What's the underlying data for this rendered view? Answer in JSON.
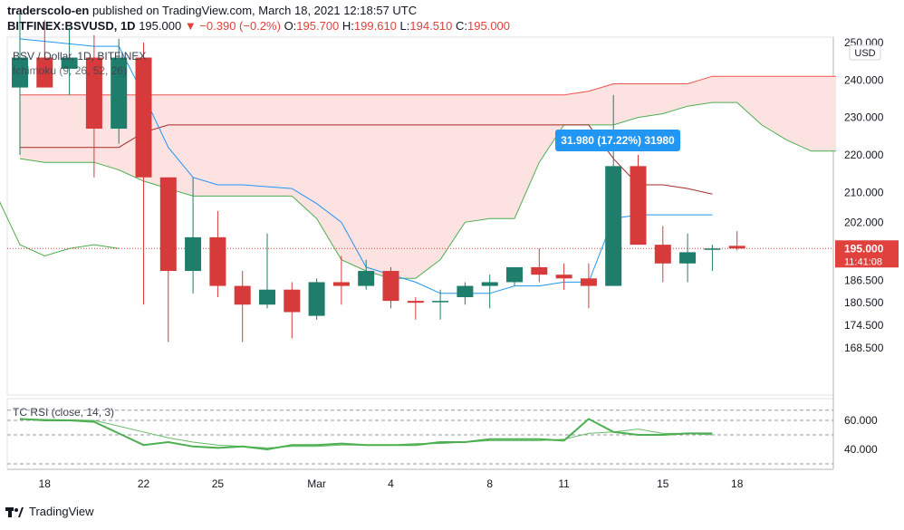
{
  "header": {
    "user": "traderscolo-en",
    "published_text": "published on TradingView.com, March 18, 2021 12:18:57 UTC",
    "symbol_line": "BITFINEX:BSVUSD, 1D",
    "last": "195.000",
    "change": "▼ −0.390 (−0.2%)",
    "o_label": "O:",
    "o_val": "195.700",
    "h_label": "H:",
    "h_val": "199.610",
    "l_label": "L:",
    "l_val": "194.510",
    "c_label": "C:",
    "c_val": "195.000"
  },
  "legend": {
    "pair": "BSV / Dollar, 1D, BITFINEX",
    "ichimoku": "Ichimoku (9, 26, 52, 26)",
    "rsi": "TC RSI (close, 14, 3)"
  },
  "price_axis": {
    "labels": [
      "250.000",
      "240.000",
      "230.000",
      "220.000",
      "210.000",
      "202.000",
      "186.500",
      "180.500",
      "174.500",
      "168.500"
    ],
    "unit": "USD",
    "current_price": "195.000",
    "countdown": "11:41:08"
  },
  "rsi_axis": {
    "labels": [
      "60.000",
      "40.000"
    ]
  },
  "x_axis": {
    "labels": [
      {
        "day": 6,
        "text": "18"
      },
      {
        "day": 10,
        "text": "22"
      },
      {
        "day": 13,
        "text": "25"
      },
      {
        "day": 17,
        "text": "Mar"
      },
      {
        "day": 20,
        "text": "4"
      },
      {
        "day": 24,
        "text": "8"
      },
      {
        "day": 27,
        "text": "11"
      },
      {
        "day": 31,
        "text": "15"
      },
      {
        "day": 34,
        "text": "18"
      }
    ]
  },
  "measure_label": "31.980 (17.22%) 31980",
  "colors": {
    "up": "#1f7d6b",
    "down": "#d63a3a",
    "tenkan": "#2196f3",
    "kijun": "#a52a2a",
    "span_a": "#4caf50",
    "span_b": "#ef5350",
    "cloud": "#fde2e2",
    "rsi": "#4caf50",
    "label_bg": "#e0413d",
    "measure_bg": "#2196f3"
  },
  "footer": {
    "brand": "TradingView"
  },
  "chart_data": {
    "type": "candlestick",
    "title": "BSV / Dollar, 1D, BITFINEX",
    "x_unit": "day index (0 = Feb 12, 2021)",
    "candles": [
      {
        "d": 0,
        "o": 238,
        "h": 258,
        "l": 220,
        "c": 246
      },
      {
        "d": 1,
        "o": 246,
        "h": 256,
        "l": 238,
        "c": 238
      },
      {
        "d": 2,
        "o": 243,
        "h": 254,
        "l": 236,
        "c": 246
      },
      {
        "d": 3,
        "o": 246,
        "h": 252,
        "l": 214,
        "c": 227
      },
      {
        "d": 4,
        "o": 227,
        "h": 251,
        "l": 223,
        "c": 246
      },
      {
        "d": 5,
        "o": 246,
        "h": 250,
        "l": 180,
        "c": 214
      },
      {
        "d": 6,
        "o": 214,
        "h": 214,
        "l": 170,
        "c": 189
      },
      {
        "d": 7,
        "o": 189,
        "h": 214,
        "l": 183,
        "c": 198
      },
      {
        "d": 8,
        "o": 198,
        "h": 205,
        "l": 182,
        "c": 185
      },
      {
        "d": 9,
        "o": 185,
        "h": 189,
        "l": 170,
        "c": 180
      },
      {
        "d": 10,
        "o": 180,
        "h": 199,
        "l": 179,
        "c": 184
      },
      {
        "d": 11,
        "o": 184,
        "h": 186,
        "l": 171,
        "c": 178
      },
      {
        "d": 12,
        "o": 177,
        "h": 187,
        "l": 176,
        "c": 186
      },
      {
        "d": 13,
        "o": 186,
        "h": 193,
        "l": 180,
        "c": 185
      },
      {
        "d": 14,
        "o": 185,
        "h": 192,
        "l": 184,
        "c": 189
      },
      {
        "d": 15,
        "o": 189,
        "h": 190,
        "l": 179,
        "c": 181
      },
      {
        "d": 16,
        "o": 181,
        "h": 182,
        "l": 176,
        "c": 180.5
      },
      {
        "d": 17,
        "o": 181,
        "h": 184,
        "l": 176,
        "c": 181
      },
      {
        "d": 18,
        "o": 182,
        "h": 186,
        "l": 180,
        "c": 185
      },
      {
        "d": 19,
        "o": 185,
        "h": 188,
        "l": 179,
        "c": 186
      },
      {
        "d": 20,
        "o": 186,
        "h": 190,
        "l": 185,
        "c": 190
      },
      {
        "d": 21,
        "o": 190,
        "h": 195,
        "l": 186,
        "c": 188
      },
      {
        "d": 22,
        "o": 188,
        "h": 191,
        "l": 184,
        "c": 187
      },
      {
        "d": 23,
        "o": 187,
        "h": 191,
        "l": 179,
        "c": 185
      },
      {
        "d": 24,
        "o": 185,
        "h": 236,
        "l": 185,
        "c": 217
      },
      {
        "d": 25,
        "o": 217,
        "h": 220,
        "l": 196,
        "c": 196
      },
      {
        "d": 26,
        "o": 196,
        "h": 201,
        "l": 186,
        "c": 191
      },
      {
        "d": 27,
        "o": 191,
        "h": 199,
        "l": 186,
        "c": 194
      },
      {
        "d": 28,
        "o": 195,
        "h": 196,
        "l": 189,
        "c": 195
      },
      {
        "d": 29,
        "o": 195.7,
        "h": 199.61,
        "l": 194.51,
        "c": 195
      }
    ],
    "tenkan": [
      [
        0,
        251
      ],
      [
        3,
        249
      ],
      [
        4,
        249
      ],
      [
        5,
        236
      ],
      [
        6,
        222
      ],
      [
        7,
        214
      ],
      [
        8,
        212
      ],
      [
        9,
        212
      ],
      [
        11,
        211
      ],
      [
        12,
        207
      ],
      [
        13,
        202
      ],
      [
        14,
        190
      ],
      [
        15,
        188
      ],
      [
        16,
        186
      ],
      [
        17,
        183
      ],
      [
        18,
        183
      ],
      [
        19,
        183
      ],
      [
        20,
        185
      ],
      [
        21,
        185
      ],
      [
        22,
        186
      ],
      [
        23,
        186
      ],
      [
        24,
        203
      ],
      [
        25,
        204
      ],
      [
        26,
        204
      ],
      [
        27,
        204
      ],
      [
        28,
        204
      ]
    ],
    "kijun": [
      [
        0,
        222
      ],
      [
        4,
        222
      ],
      [
        5,
        226
      ],
      [
        6,
        228
      ],
      [
        7,
        228
      ],
      [
        8,
        228
      ],
      [
        22,
        228
      ],
      [
        23,
        228
      ],
      [
        24,
        219
      ],
      [
        25,
        212
      ],
      [
        26,
        212
      ],
      [
        27,
        211
      ],
      [
        28,
        209.5
      ]
    ],
    "span_a": [
      [
        0,
        219
      ],
      [
        1,
        218
      ],
      [
        2,
        218
      ],
      [
        3,
        218
      ],
      [
        4,
        216
      ],
      [
        5,
        213
      ],
      [
        6,
        211
      ],
      [
        7,
        209
      ],
      [
        8,
        209
      ],
      [
        11,
        209
      ],
      [
        12,
        203
      ],
      [
        13,
        192
      ],
      [
        14,
        189
      ],
      [
        15,
        187
      ],
      [
        16,
        187
      ],
      [
        17,
        192
      ],
      [
        18,
        202
      ],
      [
        19,
        203
      ],
      [
        20,
        203
      ],
      [
        21,
        218
      ],
      [
        22,
        228
      ],
      [
        23,
        228
      ],
      [
        24,
        228
      ],
      [
        25,
        230
      ],
      [
        26,
        231
      ],
      [
        27,
        233
      ],
      [
        28,
        234
      ],
      [
        29,
        234
      ],
      [
        30,
        228
      ],
      [
        31,
        224
      ],
      [
        32,
        221
      ],
      [
        33,
        221
      ]
    ],
    "span_b": [
      [
        0,
        236
      ],
      [
        22,
        236
      ],
      [
        23,
        237
      ],
      [
        24,
        239
      ],
      [
        27,
        239
      ],
      [
        28,
        241
      ],
      [
        33,
        241
      ]
    ],
    "lagging_span": [
      [
        -1,
        210
      ],
      [
        0,
        196
      ],
      [
        1,
        193
      ],
      [
        2,
        195
      ],
      [
        3,
        196
      ],
      [
        4,
        195
      ]
    ],
    "rsi": [
      [
        0,
        61
      ],
      [
        1,
        60
      ],
      [
        2,
        60
      ],
      [
        3,
        59
      ],
      [
        4,
        51
      ],
      [
        5,
        43
      ],
      [
        6,
        45
      ],
      [
        7,
        42
      ],
      [
        8,
        41
      ],
      [
        9,
        42
      ],
      [
        10,
        40
      ],
      [
        11,
        43
      ],
      [
        12,
        43
      ],
      [
        13,
        44
      ],
      [
        14,
        43
      ],
      [
        15,
        43
      ],
      [
        16,
        43
      ],
      [
        17,
        45
      ],
      [
        18,
        45
      ],
      [
        19,
        47
      ],
      [
        20,
        47
      ],
      [
        21,
        47
      ],
      [
        22,
        46
      ],
      [
        23,
        61
      ],
      [
        24,
        52
      ],
      [
        25,
        50
      ],
      [
        26,
        50
      ],
      [
        27,
        51
      ],
      [
        28,
        51
      ]
    ],
    "rsi_signal": [
      [
        0,
        61
      ],
      [
        3,
        60
      ],
      [
        4,
        56
      ],
      [
        5,
        52
      ],
      [
        6,
        48
      ],
      [
        7,
        45
      ],
      [
        8,
        43
      ],
      [
        9,
        42
      ],
      [
        10,
        41
      ],
      [
        11,
        42
      ],
      [
        12,
        42
      ],
      [
        13,
        43
      ],
      [
        14,
        43
      ],
      [
        15,
        43
      ],
      [
        16,
        44
      ],
      [
        17,
        44
      ],
      [
        18,
        45
      ],
      [
        19,
        46
      ],
      [
        20,
        46
      ],
      [
        21,
        46
      ],
      [
        22,
        47
      ],
      [
        23,
        51
      ],
      [
        24,
        52
      ],
      [
        25,
        54
      ],
      [
        26,
        51
      ],
      [
        27,
        51
      ],
      [
        28,
        50
      ]
    ],
    "price_ylim": [
      164,
      252
    ],
    "rsi_ylim": [
      25,
      70
    ]
  }
}
